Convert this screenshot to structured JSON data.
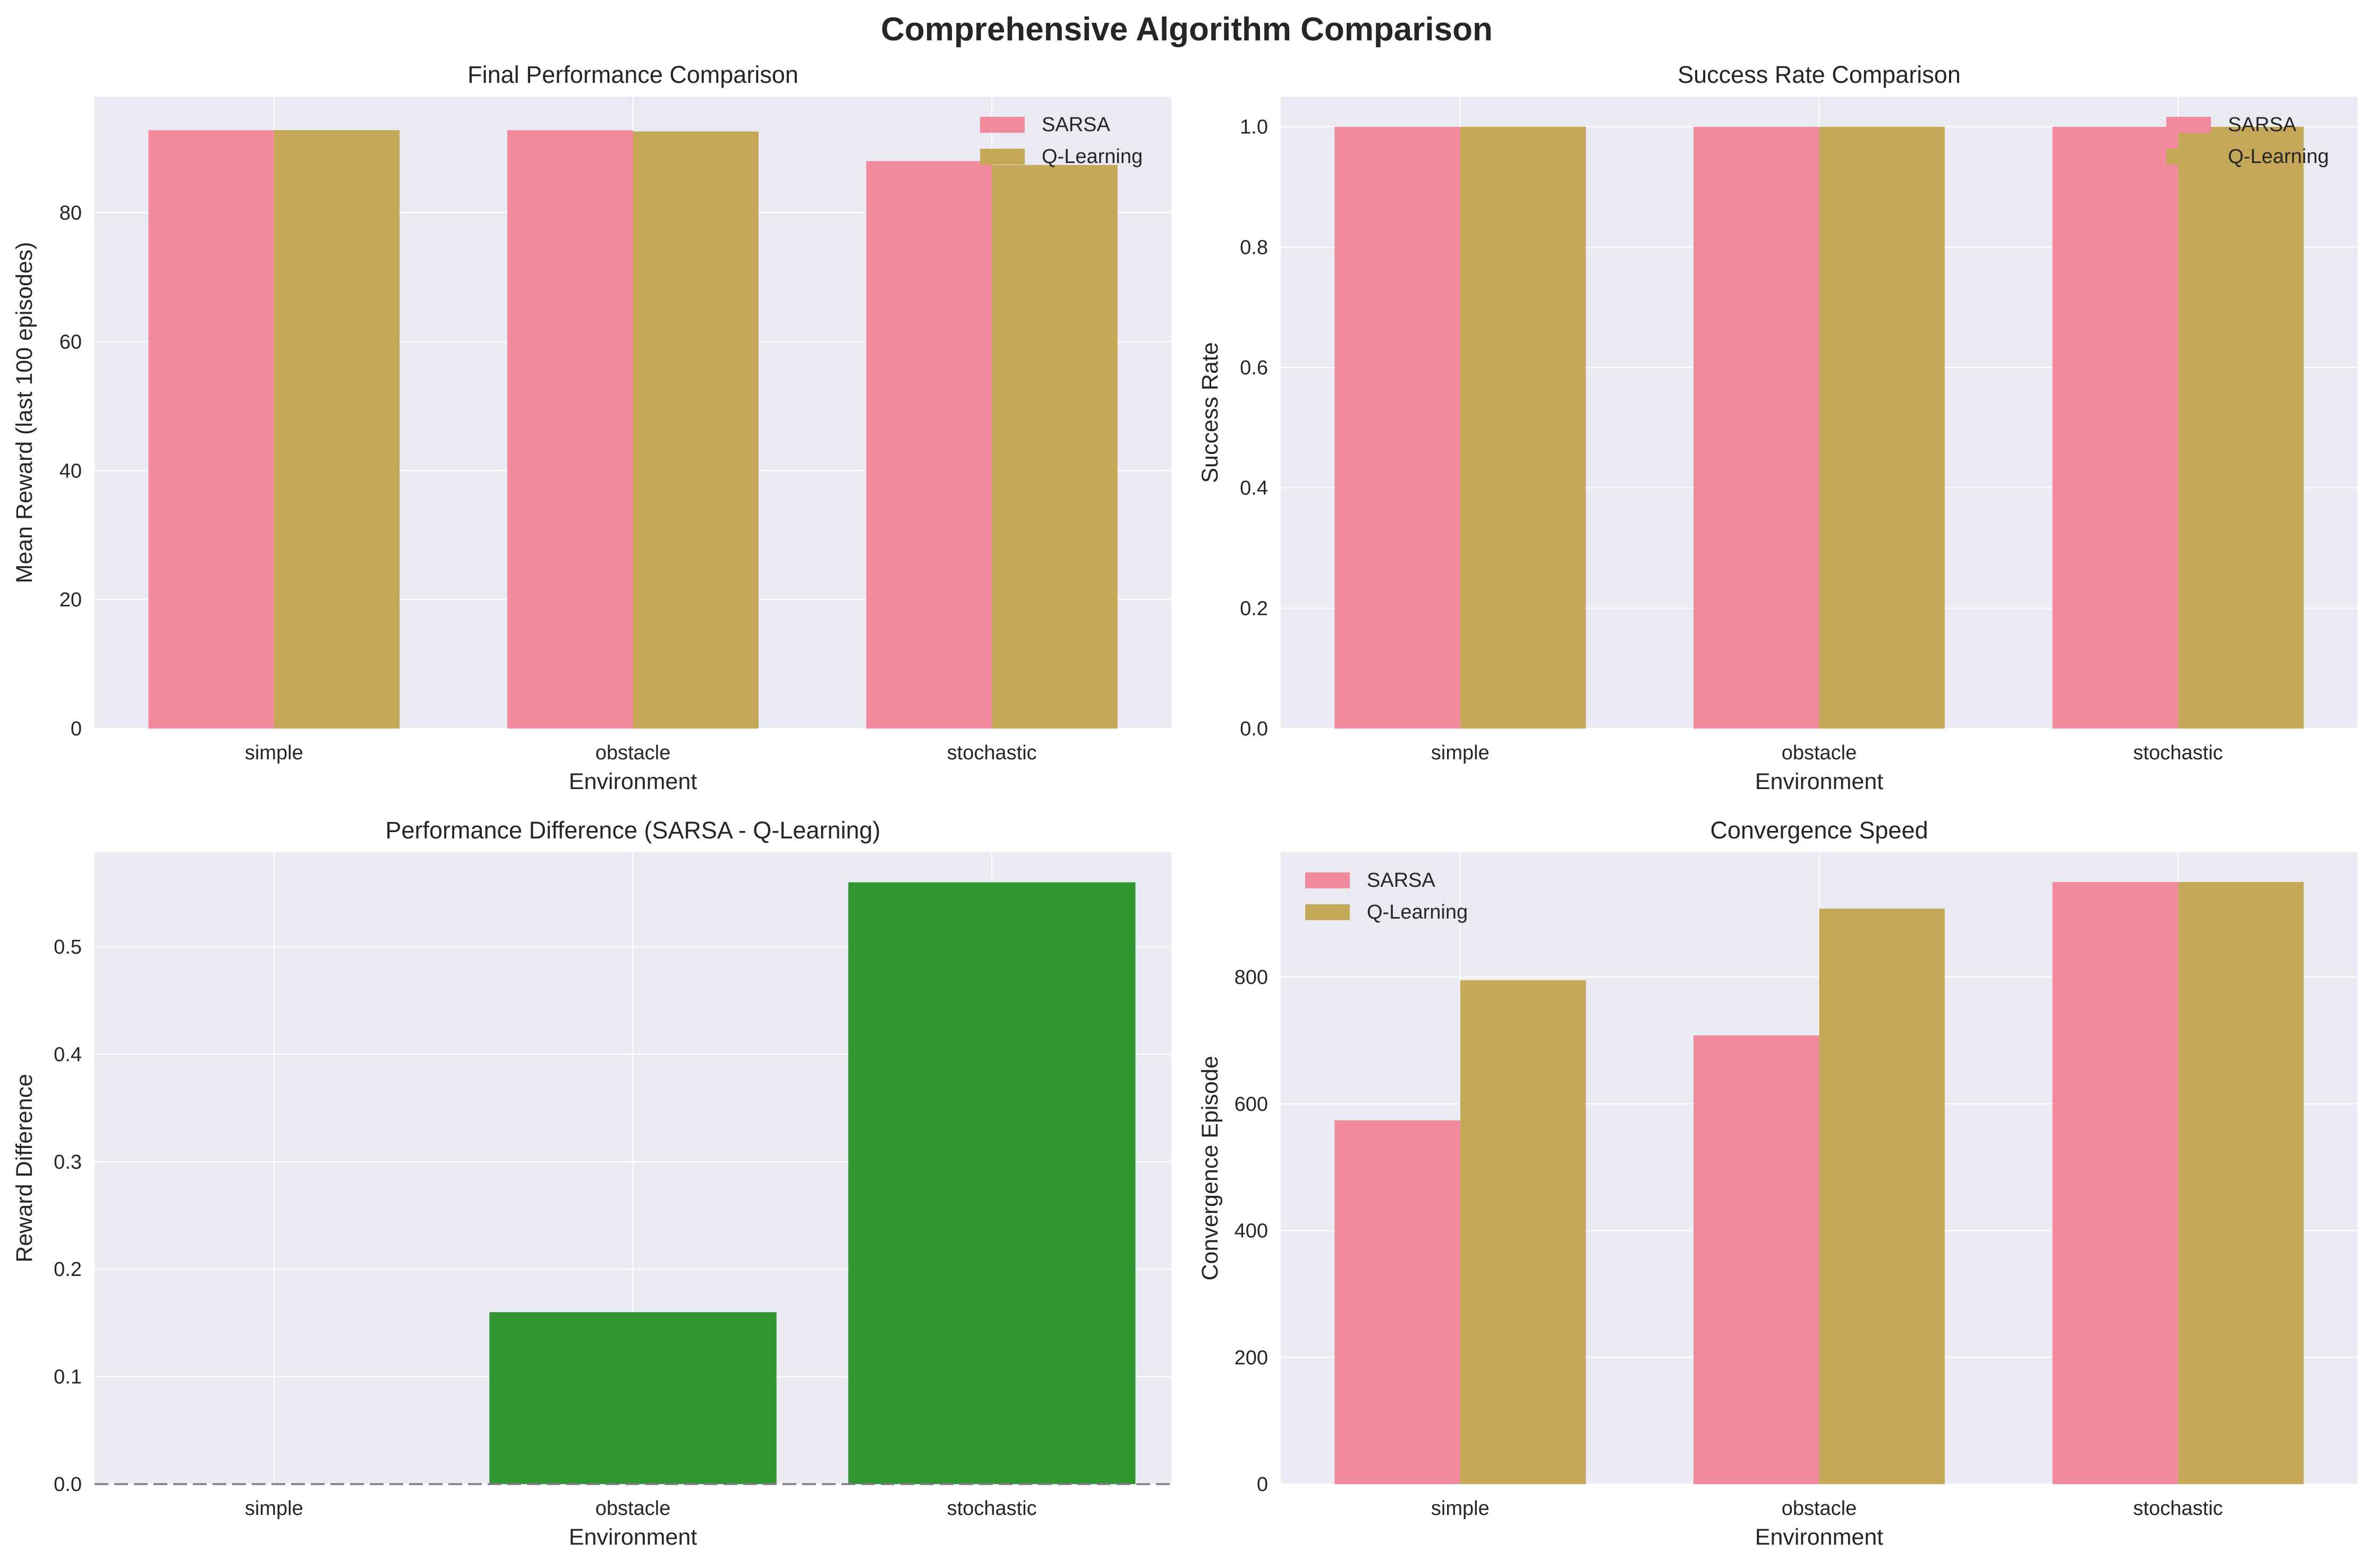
{
  "figure": {
    "title": "Comprehensive Algorithm Comparison"
  },
  "colors": {
    "background": "#eaeaf2",
    "sarsa": "#f28a9d",
    "qlearning": "#c4a857",
    "difference": "#2f9632",
    "zeroline": "#807a88"
  },
  "chart_data": [
    {
      "id": "final_performance",
      "type": "bar",
      "title": "Final Performance Comparison",
      "xlabel": "Environment",
      "ylabel": "Mean Reward (last 100 episodes)",
      "categories": [
        "simple",
        "obstacle",
        "stochastic"
      ],
      "series": [
        {
          "name": "SARSA",
          "values": [
            92.8,
            92.8,
            88.0
          ]
        },
        {
          "name": "Q-Learning",
          "values": [
            92.8,
            92.6,
            87.4
          ]
        }
      ],
      "ylim": [
        0,
        98
      ],
      "yticks": [
        0,
        20,
        40,
        60,
        80
      ],
      "grid": true,
      "legend": "upper-right"
    },
    {
      "id": "success_rate",
      "type": "bar",
      "title": "Success Rate Comparison",
      "xlabel": "Environment",
      "ylabel": "Success Rate",
      "categories": [
        "simple",
        "obstacle",
        "stochastic"
      ],
      "series": [
        {
          "name": "SARSA",
          "values": [
            1.0,
            1.0,
            1.0
          ]
        },
        {
          "name": "Q-Learning",
          "values": [
            1.0,
            1.0,
            1.0
          ]
        }
      ],
      "ylim": [
        0,
        1.05
      ],
      "yticks": [
        0.0,
        0.2,
        0.4,
        0.6,
        0.8,
        1.0
      ],
      "grid": true,
      "legend": "upper-right"
    },
    {
      "id": "performance_difference",
      "type": "bar",
      "title": "Performance Difference (SARSA - Q-Learning)",
      "xlabel": "Environment",
      "ylabel": "Reward Difference",
      "categories": [
        "simple",
        "obstacle",
        "stochastic"
      ],
      "series": [
        {
          "values": [
            0.0,
            0.16,
            0.56
          ]
        }
      ],
      "ylim": [
        0,
        0.588
      ],
      "yticks": [
        0.0,
        0.1,
        0.2,
        0.3,
        0.4,
        0.5
      ],
      "grid": true,
      "reference_line": {
        "y": 0,
        "style": "dashed"
      }
    },
    {
      "id": "convergence_speed",
      "type": "bar",
      "title": "Convergence Speed",
      "xlabel": "Environment",
      "ylabel": "Convergence Episode",
      "categories": [
        "simple",
        "obstacle",
        "stochastic"
      ],
      "series": [
        {
          "name": "SARSA",
          "values": [
            574,
            708,
            950
          ]
        },
        {
          "name": "Q-Learning",
          "values": [
            795,
            908,
            950
          ]
        }
      ],
      "ylim": [
        0,
        997
      ],
      "yticks": [
        0,
        200,
        400,
        600,
        800
      ],
      "grid": true,
      "legend": "upper-left"
    }
  ]
}
